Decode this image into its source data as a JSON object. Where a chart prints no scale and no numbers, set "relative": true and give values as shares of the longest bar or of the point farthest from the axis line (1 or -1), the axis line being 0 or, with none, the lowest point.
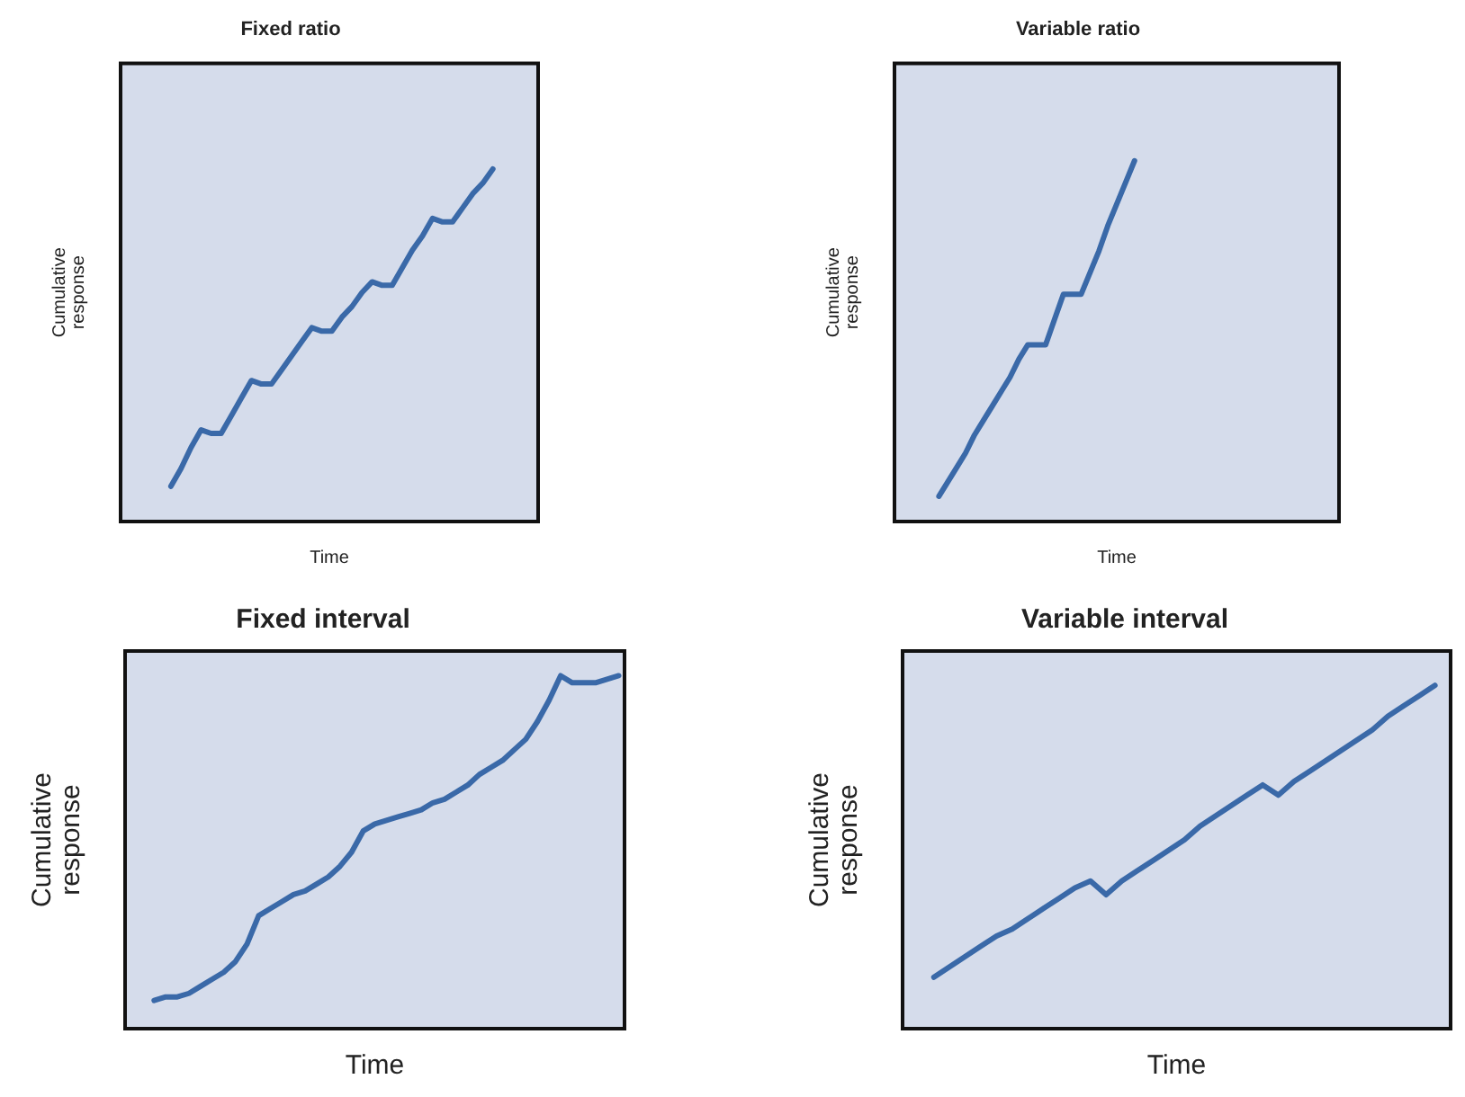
{
  "chart_data": [
    {
      "type": "line",
      "title": "Fixed ratio",
      "xlabel": "Time",
      "ylabel": "Cumulative response",
      "relative": true,
      "marker": "none",
      "categories": [
        null,
        null,
        null,
        null,
        null,
        null,
        null,
        null,
        null,
        null,
        null,
        null,
        null,
        null,
        null,
        null,
        null,
        null,
        null,
        null,
        null,
        null,
        null,
        null,
        null,
        null,
        null,
        null,
        null,
        null,
        null,
        null,
        null
      ],
      "series": [
        {
          "color": "#3a69a8",
          "values": [
            0.1,
            0.15,
            0.21,
            0.26,
            0.25,
            0.25,
            0.3,
            0.35,
            0.4,
            0.39,
            0.39,
            0.43,
            0.47,
            0.51,
            0.55,
            0.54,
            0.54,
            0.58,
            0.61,
            0.65,
            0.68,
            0.67,
            0.67,
            0.72,
            0.77,
            0.81,
            0.86,
            0.85,
            0.85,
            0.89,
            0.93,
            0.96,
            1.0
          ]
        }
      ]
    },
    {
      "type": "line",
      "title": "Variable ratio",
      "xlabel": "Time",
      "ylabel": "Cumulative response",
      "relative": true,
      "marker": "none",
      "categories": [
        null,
        null,
        null,
        null,
        null,
        null,
        null,
        null,
        null,
        null,
        null,
        null,
        null,
        null,
        null,
        null,
        null,
        null,
        null,
        null,
        null,
        null,
        null
      ],
      "series": [
        {
          "color": "#3a69a8",
          "values": [
            0.07,
            0.11,
            0.15,
            0.19,
            0.24,
            0.28,
            0.32,
            0.36,
            0.4,
            0.45,
            0.49,
            0.49,
            0.49,
            0.56,
            0.63,
            0.63,
            0.63,
            0.69,
            0.75,
            0.82,
            0.88,
            0.94,
            1.0
          ]
        }
      ]
    },
    {
      "type": "line",
      "title": "Fixed interval",
      "xlabel": "Time",
      "ylabel": "Cumulative response",
      "relative": true,
      "marker": "none",
      "categories": [
        null,
        null,
        null,
        null,
        null,
        null,
        null,
        null,
        null,
        null,
        null,
        null,
        null,
        null,
        null,
        null,
        null,
        null,
        null,
        null,
        null,
        null,
        null,
        null,
        null,
        null,
        null,
        null,
        null,
        null,
        null,
        null,
        null,
        null,
        null,
        null,
        null,
        null,
        null,
        null,
        null
      ],
      "series": [
        {
          "color": "#3a69a8",
          "values": [
            0.08,
            0.09,
            0.09,
            0.1,
            0.12,
            0.14,
            0.16,
            0.19,
            0.24,
            0.32,
            0.34,
            0.36,
            0.38,
            0.39,
            0.41,
            0.43,
            0.46,
            0.5,
            0.56,
            0.58,
            0.59,
            0.6,
            0.61,
            0.62,
            0.64,
            0.65,
            0.67,
            0.69,
            0.72,
            0.74,
            0.76,
            0.79,
            0.82,
            0.87,
            0.93,
            1.0,
            0.98,
            0.98,
            0.98,
            0.99,
            1.0
          ]
        }
      ]
    },
    {
      "type": "line",
      "title": "Variable interval",
      "xlabel": "Time",
      "ylabel": "Cumulative response",
      "relative": true,
      "marker": "none",
      "categories": [
        null,
        null,
        null,
        null,
        null,
        null,
        null,
        null,
        null,
        null,
        null,
        null,
        null,
        null,
        null,
        null,
        null,
        null,
        null,
        null,
        null,
        null,
        null,
        null,
        null,
        null,
        null,
        null,
        null,
        null,
        null,
        null,
        null
      ],
      "series": [
        {
          "color": "#3a69a8",
          "values": [
            0.15,
            0.18,
            0.21,
            0.24,
            0.27,
            0.29,
            0.32,
            0.35,
            0.38,
            0.41,
            0.43,
            0.39,
            0.43,
            0.46,
            0.49,
            0.52,
            0.55,
            0.59,
            0.62,
            0.65,
            0.68,
            0.71,
            0.68,
            0.72,
            0.75,
            0.78,
            0.81,
            0.84,
            0.87,
            0.91,
            0.94,
            0.97,
            1.0
          ]
        }
      ]
    }
  ]
}
